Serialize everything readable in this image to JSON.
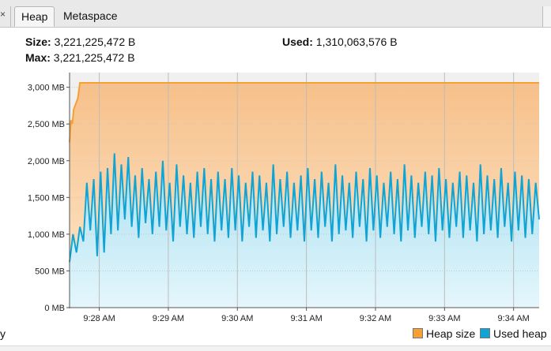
{
  "tabs": {
    "close_glyph": "×",
    "heap": "Heap",
    "metaspace": "Metaspace"
  },
  "info": {
    "size_label": "Size:",
    "size_value": "3,221,225,472 B",
    "max_label": "Max:",
    "max_value": "3,221,225,472 B",
    "used_label": "Used:",
    "used_value": "1,310,063,576 B"
  },
  "legend": {
    "heap_size": "Heap size",
    "used_heap": "Used heap",
    "heap_color": "#f5a033",
    "used_color": "#10a4d4"
  },
  "cut_left_text": "y",
  "chart_data": {
    "type": "area",
    "ylim": [
      0,
      3200
    ],
    "yticks": [
      "0 MB",
      "500 MB",
      "1,000 MB",
      "1,500 MB",
      "2,000 MB",
      "2,500 MB",
      "3,000 MB"
    ],
    "ytick_values": [
      0,
      500,
      1000,
      1500,
      2000,
      2500,
      3000
    ],
    "xticks": [
      "9:28 AM",
      "9:29 AM",
      "9:30 AM",
      "9:31 AM",
      "9:32 AM",
      "9:33 AM",
      "9:34 AM"
    ],
    "xtick_values": [
      0.93,
      1.93,
      2.93,
      3.93,
      4.93,
      5.93,
      6.93
    ],
    "xlim": [
      0.5,
      7.3
    ],
    "series": [
      {
        "name": "Heap size",
        "x": [
          0.5,
          0.52,
          0.54,
          0.56,
          0.6,
          0.62,
          0.65,
          0.68,
          7.3
        ],
        "values": [
          2250,
          2550,
          2500,
          2700,
          2800,
          2850,
          3060,
          3060,
          3060
        ]
      },
      {
        "name": "Used heap",
        "x": [
          0.5,
          0.55,
          0.6,
          0.65,
          0.7,
          0.75,
          0.8,
          0.85,
          0.9,
          0.95,
          1.0,
          1.05,
          1.1,
          1.15,
          1.2,
          1.25,
          1.3,
          1.35,
          1.4,
          1.45,
          1.5,
          1.55,
          1.6,
          1.65,
          1.7,
          1.75,
          1.8,
          1.85,
          1.9,
          1.95,
          2.0,
          2.05,
          2.1,
          2.15,
          2.2,
          2.25,
          2.3,
          2.35,
          2.4,
          2.45,
          2.5,
          2.55,
          2.6,
          2.65,
          2.7,
          2.75,
          2.8,
          2.85,
          2.9,
          2.95,
          3.0,
          3.05,
          3.1,
          3.15,
          3.2,
          3.25,
          3.3,
          3.35,
          3.4,
          3.45,
          3.5,
          3.55,
          3.6,
          3.65,
          3.7,
          3.75,
          3.8,
          3.85,
          3.9,
          3.95,
          4.0,
          4.05,
          4.1,
          4.15,
          4.2,
          4.25,
          4.3,
          4.35,
          4.4,
          4.45,
          4.5,
          4.55,
          4.6,
          4.65,
          4.7,
          4.75,
          4.8,
          4.85,
          4.9,
          4.95,
          5.0,
          5.05,
          5.1,
          5.15,
          5.2,
          5.25,
          5.3,
          5.35,
          5.4,
          5.45,
          5.5,
          5.55,
          5.6,
          5.65,
          5.7,
          5.75,
          5.8,
          5.85,
          5.9,
          5.95,
          6.0,
          6.05,
          6.1,
          6.15,
          6.2,
          6.25,
          6.3,
          6.35,
          6.4,
          6.45,
          6.5,
          6.55,
          6.6,
          6.65,
          6.7,
          6.75,
          6.8,
          6.85,
          6.9,
          6.95,
          7.0,
          7.05,
          7.1,
          7.15,
          7.2,
          7.25,
          7.3
        ],
        "values": [
          620,
          1000,
          750,
          1100,
          900,
          1700,
          1050,
          1750,
          700,
          1850,
          750,
          1900,
          1000,
          2100,
          1050,
          1950,
          1200,
          2050,
          1100,
          1800,
          950,
          1900,
          1150,
          1750,
          1000,
          1850,
          1100,
          2000,
          1050,
          1700,
          900,
          1950,
          1100,
          1800,
          1000,
          1700,
          950,
          1850,
          1100,
          1900,
          1000,
          1750,
          900,
          1850,
          1050,
          1750,
          950,
          1900,
          1050,
          1800,
          900,
          1700,
          1100,
          1850,
          950,
          1800,
          1050,
          1700,
          900,
          1950,
          1000,
          1750,
          1100,
          1850,
          950,
          1700,
          1050,
          1800,
          900,
          1900,
          1050,
          1750,
          950,
          1850,
          1100,
          1700,
          900,
          1950,
          1000,
          1800,
          1050,
          1700,
          950,
          1850,
          1100,
          1750,
          900,
          1900,
          1050,
          1800,
          950,
          1700,
          1100,
          1850,
          1000,
          1750,
          900,
          1950,
          1050,
          1800,
          950,
          1700,
          1100,
          1850,
          1000,
          1800,
          900,
          1900,
          1050,
          1750,
          950,
          1700,
          1100,
          1850,
          950,
          1800,
          1050,
          1700,
          900,
          1950,
          1000,
          1800,
          1050,
          1750,
          950,
          1900,
          1100,
          1700,
          900,
          1850,
          1050,
          1800,
          950,
          1750,
          1000,
          1700,
          1200
        ]
      }
    ],
    "grid": true,
    "legend_position": "bottom-right"
  }
}
